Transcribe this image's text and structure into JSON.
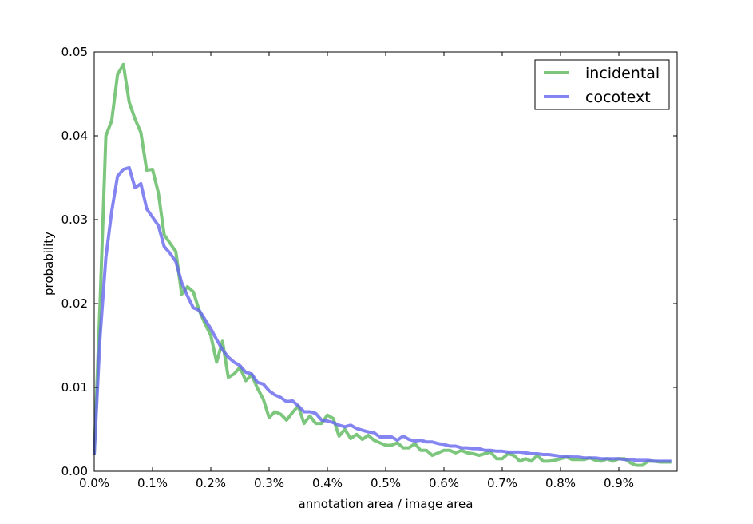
{
  "chart_data": {
    "type": "line",
    "xlabel": "annotation area / image area",
    "ylabel": "probability",
    "xlim": [
      0,
      0.01
    ],
    "ylim": [
      0,
      0.05
    ],
    "x_ticks": [
      0,
      0.001,
      0.002,
      0.003,
      0.004,
      0.005,
      0.006,
      0.007,
      0.008,
      0.009
    ],
    "x_tick_labels": [
      "0.0%",
      "0.1%",
      "0.2%",
      "0.3%",
      "0.4%",
      "0.5%",
      "0.6%",
      "0.7%",
      "0.8%",
      "0.9%"
    ],
    "y_ticks": [
      0,
      0.01,
      0.02,
      0.03,
      0.04,
      0.05
    ],
    "y_tick_labels": [
      "0.00",
      "0.01",
      "0.02",
      "0.03",
      "0.04",
      "0.05"
    ],
    "grid": false,
    "legend_position": "top-right",
    "series": [
      {
        "name": "incidental",
        "color": "#5cb85c",
        "x": [
          0,
          0.0001,
          0.0002,
          0.0003,
          0.0004,
          0.0005,
          0.0006,
          0.0007,
          0.0008,
          0.0009,
          0.001,
          0.0011,
          0.0012,
          0.0013,
          0.0014,
          0.0015,
          0.0016,
          0.0017,
          0.0018,
          0.0019,
          0.002,
          0.0021,
          0.0022,
          0.0023,
          0.0024,
          0.0025,
          0.0026,
          0.0027,
          0.0028,
          0.0029,
          0.003,
          0.0031,
          0.0032,
          0.0033,
          0.0034,
          0.0035,
          0.0036,
          0.0037,
          0.0038,
          0.0039,
          0.004,
          0.0041,
          0.0042,
          0.0043,
          0.0044,
          0.0045,
          0.0046,
          0.0047,
          0.0048,
          0.0049,
          0.005,
          0.0051,
          0.0052,
          0.0053,
          0.0054,
          0.0055,
          0.0056,
          0.0057,
          0.0058,
          0.0059,
          0.006,
          0.0061,
          0.0062,
          0.0063,
          0.0064,
          0.0065,
          0.0066,
          0.0067,
          0.0068,
          0.0069,
          0.007,
          0.0071,
          0.0072,
          0.0073,
          0.0074,
          0.0075,
          0.0076,
          0.0077,
          0.0078,
          0.0079,
          0.008,
          0.0081,
          0.0082,
          0.0083,
          0.0084,
          0.0085,
          0.0086,
          0.0087,
          0.0088,
          0.0089,
          0.009,
          0.0091,
          0.0092,
          0.0093,
          0.0094,
          0.0095,
          0.0096,
          0.0097,
          0.0098,
          0.0099
        ],
        "values": [
          0.002,
          0.02,
          0.04,
          0.0418,
          0.0473,
          0.0485,
          0.044,
          0.042,
          0.0404,
          0.0359,
          0.036,
          0.0332,
          0.0282,
          0.0272,
          0.0262,
          0.0211,
          0.022,
          0.0214,
          0.0192,
          0.0176,
          0.0162,
          0.013,
          0.0155,
          0.0112,
          0.0116,
          0.0124,
          0.0108,
          0.0115,
          0.0099,
          0.0086,
          0.0064,
          0.0071,
          0.0068,
          0.0061,
          0.007,
          0.0078,
          0.0057,
          0.0066,
          0.0057,
          0.0057,
          0.0067,
          0.0063,
          0.0042,
          0.005,
          0.0039,
          0.0044,
          0.0038,
          0.0043,
          0.0037,
          0.0034,
          0.0031,
          0.0031,
          0.0034,
          0.0028,
          0.0028,
          0.0033,
          0.0025,
          0.0025,
          0.0019,
          0.0022,
          0.0025,
          0.0025,
          0.0022,
          0.0025,
          0.0022,
          0.0021,
          0.0019,
          0.0021,
          0.0023,
          0.0015,
          0.0015,
          0.0021,
          0.0019,
          0.0012,
          0.0015,
          0.0012,
          0.0019,
          0.0012,
          0.0012,
          0.0013,
          0.0015,
          0.0017,
          0.0014,
          0.0014,
          0.0014,
          0.0016,
          0.0013,
          0.0012,
          0.0015,
          0.0012,
          0.0015,
          0.0015,
          0.001,
          0.0007,
          0.0007,
          0.0012,
          0.0012,
          0.0011,
          0.0011,
          0.0011
        ]
      },
      {
        "name": "cocotext",
        "color": "#6666ee",
        "x": [
          0,
          0.0001,
          0.0002,
          0.0003,
          0.0004,
          0.0005,
          0.0006,
          0.0007,
          0.0008,
          0.0009,
          0.001,
          0.0011,
          0.0012,
          0.0013,
          0.0014,
          0.0015,
          0.0016,
          0.0017,
          0.0018,
          0.0019,
          0.002,
          0.0021,
          0.0022,
          0.0023,
          0.0024,
          0.0025,
          0.0026,
          0.0027,
          0.0028,
          0.0029,
          0.003,
          0.0031,
          0.0032,
          0.0033,
          0.0034,
          0.0035,
          0.0036,
          0.0037,
          0.0038,
          0.0039,
          0.004,
          0.0041,
          0.0042,
          0.0043,
          0.0044,
          0.0045,
          0.0046,
          0.0047,
          0.0048,
          0.0049,
          0.005,
          0.0051,
          0.0052,
          0.0053,
          0.0054,
          0.0055,
          0.0056,
          0.0057,
          0.0058,
          0.0059,
          0.006,
          0.0061,
          0.0062,
          0.0063,
          0.0064,
          0.0065,
          0.0066,
          0.0067,
          0.0068,
          0.0069,
          0.007,
          0.0071,
          0.0072,
          0.0073,
          0.0074,
          0.0075,
          0.0076,
          0.0077,
          0.0078,
          0.0079,
          0.008,
          0.0081,
          0.0082,
          0.0083,
          0.0084,
          0.0085,
          0.0086,
          0.0087,
          0.0088,
          0.0089,
          0.009,
          0.0091,
          0.0092,
          0.0093,
          0.0094,
          0.0095,
          0.0096,
          0.0097,
          0.0098,
          0.0099
        ],
        "values": [
          0.002,
          0.016,
          0.0255,
          0.031,
          0.0352,
          0.036,
          0.0362,
          0.0338,
          0.0343,
          0.0313,
          0.0303,
          0.0293,
          0.0268,
          0.026,
          0.025,
          0.0225,
          0.0209,
          0.0195,
          0.0192,
          0.0181,
          0.017,
          0.0157,
          0.0145,
          0.0136,
          0.013,
          0.0126,
          0.0118,
          0.0116,
          0.0106,
          0.0104,
          0.0096,
          0.0091,
          0.0088,
          0.0083,
          0.0084,
          0.0078,
          0.0071,
          0.0071,
          0.0069,
          0.0061,
          0.006,
          0.0058,
          0.0055,
          0.0053,
          0.0055,
          0.0051,
          0.0049,
          0.0047,
          0.0046,
          0.0041,
          0.0041,
          0.0041,
          0.0037,
          0.0042,
          0.0038,
          0.0036,
          0.0037,
          0.0035,
          0.0035,
          0.0033,
          0.0032,
          0.003,
          0.003,
          0.0028,
          0.0028,
          0.0027,
          0.0027,
          0.0025,
          0.0025,
          0.0024,
          0.0024,
          0.0023,
          0.0023,
          0.0023,
          0.0022,
          0.0021,
          0.0021,
          0.002,
          0.002,
          0.0019,
          0.0018,
          0.0018,
          0.0017,
          0.0017,
          0.0016,
          0.0016,
          0.0016,
          0.0015,
          0.0015,
          0.0015,
          0.0015,
          0.0014,
          0.0014,
          0.0013,
          0.0013,
          0.0013,
          0.0012,
          0.0012,
          0.0012,
          0.0012
        ]
      }
    ]
  }
}
